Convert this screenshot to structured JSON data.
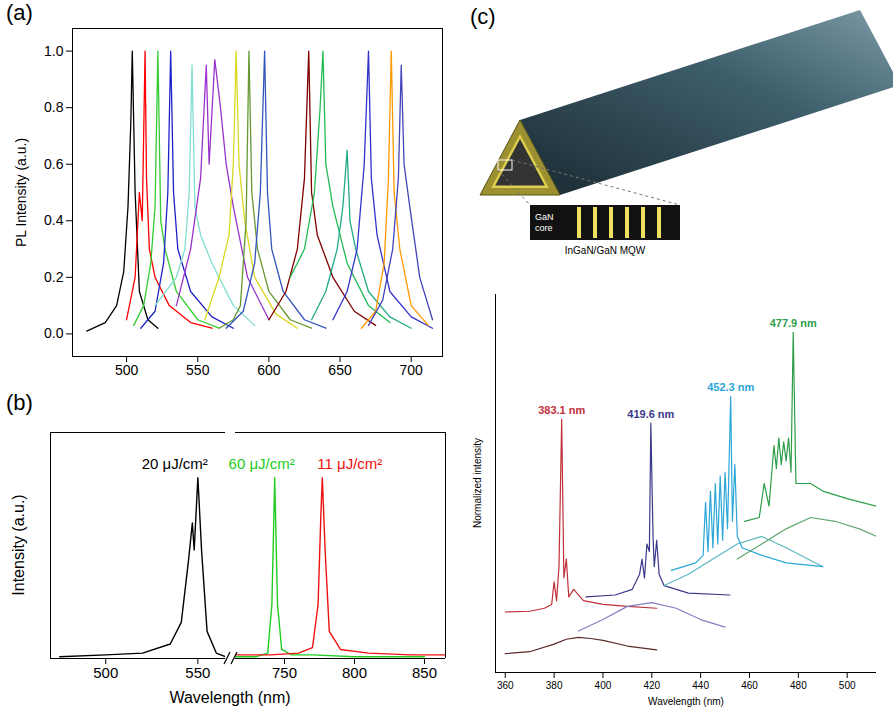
{
  "chart_data": [
    {
      "type": "line",
      "title": "(a)",
      "y_label": "PL Intensity (a.u.)",
      "xlim": [
        462,
        722
      ],
      "xticks": [
        500,
        550,
        600,
        650,
        700
      ],
      "ylim": [
        -0.08,
        1.08
      ],
      "yticks": [
        {
          "value": 0,
          "label": "0.0"
        },
        0.2,
        0.4,
        0.6,
        0.8,
        {
          "value": 1,
          "label": "1.0"
        }
      ],
      "series": [
        {
          "color": "#000000",
          "x": [
            472,
            485,
            493,
            498,
            501,
            503,
            504,
            506,
            509,
            515,
            522
          ],
          "values": [
            0.01,
            0.04,
            0.1,
            0.22,
            0.45,
            0.75,
            1.0,
            0.5,
            0.15,
            0.05,
            0.02
          ]
        },
        {
          "color": "#ff0000",
          "x": [
            500,
            506,
            509,
            511,
            513,
            514,
            516,
            520,
            530,
            545,
            560
          ],
          "values": [
            0.05,
            0.2,
            0.5,
            0.4,
            1.0,
            0.55,
            0.3,
            0.2,
            0.1,
            0.04,
            0.02
          ]
        },
        {
          "color": "#33cc33",
          "x": [
            505,
            512,
            517,
            520,
            522,
            524,
            527,
            535,
            550,
            565
          ],
          "values": [
            0.03,
            0.1,
            0.25,
            0.45,
            1.0,
            0.4,
            0.3,
            0.15,
            0.05,
            0.02
          ]
        },
        {
          "color": "#2020c8",
          "x": [
            510,
            520,
            526,
            529,
            531,
            533,
            536,
            545,
            560,
            575
          ],
          "values": [
            0.02,
            0.08,
            0.25,
            0.5,
            1.0,
            0.5,
            0.3,
            0.15,
            0.06,
            0.02
          ]
        },
        {
          "color": "#7fe0d0",
          "x": [
            520,
            535,
            541,
            544,
            546,
            548,
            552,
            560,
            575,
            590
          ],
          "values": [
            0.1,
            0.2,
            0.3,
            0.5,
            0.95,
            0.45,
            0.35,
            0.25,
            0.1,
            0.03
          ]
        },
        {
          "color": "#9933cc",
          "x": [
            535,
            545,
            552,
            556,
            558,
            562,
            566,
            570,
            575,
            585,
            600
          ],
          "values": [
            0.1,
            0.3,
            0.55,
            0.95,
            0.6,
            0.97,
            0.8,
            0.6,
            0.45,
            0.2,
            0.05
          ]
        },
        {
          "color": "#d8d820",
          "x": [
            555,
            565,
            572,
            575,
            577,
            579,
            583,
            590,
            605,
            620
          ],
          "values": [
            0.05,
            0.2,
            0.35,
            0.6,
            1.0,
            0.6,
            0.4,
            0.2,
            0.07,
            0.02
          ]
        },
        {
          "color": "#669933",
          "x": [
            565,
            575,
            580,
            584,
            586,
            588,
            592,
            600,
            615,
            630
          ],
          "values": [
            0.02,
            0.05,
            0.1,
            0.4,
            1.0,
            0.5,
            0.3,
            0.15,
            0.05,
            0.02
          ]
        },
        {
          "color": "#3355bb",
          "x": [
            570,
            582,
            590,
            594,
            597,
            599,
            602,
            610,
            625,
            640
          ],
          "values": [
            0.02,
            0.08,
            0.25,
            0.5,
            1.0,
            0.5,
            0.3,
            0.15,
            0.05,
            0.02
          ]
        },
        {
          "color": "#800000",
          "x": [
            600,
            612,
            620,
            625,
            628,
            630,
            634,
            645,
            660,
            675
          ],
          "values": [
            0.05,
            0.15,
            0.3,
            0.55,
            1.0,
            0.5,
            0.35,
            0.2,
            0.08,
            0.03
          ]
        },
        {
          "color": "#22bb55",
          "x": [
            615,
            625,
            632,
            636,
            638,
            640,
            645,
            655,
            670,
            685
          ],
          "values": [
            0.2,
            0.3,
            0.5,
            0.8,
            1.0,
            0.6,
            0.45,
            0.25,
            0.1,
            0.04
          ]
        },
        {
          "color": "#22aa88",
          "x": [
            630,
            640,
            648,
            652,
            655,
            657,
            661,
            670,
            685,
            700
          ],
          "values": [
            0.05,
            0.15,
            0.3,
            0.45,
            0.65,
            0.4,
            0.3,
            0.15,
            0.06,
            0.02
          ]
        },
        {
          "color": "#3333cc",
          "x": [
            645,
            655,
            662,
            667,
            670,
            672,
            676,
            685,
            700,
            715
          ],
          "values": [
            0.05,
            0.15,
            0.3,
            0.6,
            1.0,
            0.55,
            0.35,
            0.15,
            0.06,
            0.02
          ]
        },
        {
          "color": "#ff9900",
          "x": [
            665,
            675,
            681,
            684,
            686,
            688,
            692,
            700,
            712
          ],
          "values": [
            0.02,
            0.08,
            0.25,
            0.55,
            1.0,
            0.5,
            0.3,
            0.1,
            0.03
          ]
        },
        {
          "color": "#4444bb",
          "x": [
            670,
            680,
            687,
            691,
            693,
            695,
            699,
            706,
            715
          ],
          "values": [
            0.03,
            0.12,
            0.3,
            0.55,
            0.95,
            0.6,
            0.45,
            0.2,
            0.05
          ]
        }
      ]
    },
    {
      "type": "line",
      "title": "(b)",
      "x_label": "Wavelength (nm)",
      "y_label": "Intensity (a.u.)",
      "xlim": [
        [
          470,
          565
        ],
        [
          715,
          865
        ]
      ],
      "xticks": [
        500,
        550,
        750,
        800,
        850
      ],
      "ylim": [
        0,
        1.25
      ],
      "tick_labels": "x",
      "series": [
        {
          "name": "20 μJ/cm²",
          "color": "#000000",
          "x": [
            475,
            500,
            520,
            535,
            541,
            545,
            547,
            548,
            550,
            552,
            555,
            560,
            565
          ],
          "values": [
            0.01,
            0.02,
            0.03,
            0.08,
            0.2,
            0.55,
            0.75,
            0.6,
            1.0,
            0.6,
            0.15,
            0.03,
            0.01
          ]
        },
        {
          "name": "60 μJ/cm²",
          "color": "#22cc22",
          "x": [
            715,
            730,
            738,
            741,
            743,
            745,
            748,
            755,
            770,
            800,
            850
          ],
          "values": [
            0.01,
            0.01,
            0.03,
            0.3,
            1.0,
            0.3,
            0.05,
            0.02,
            0.02,
            0.01,
            0.01
          ]
        },
        {
          "name": "11 μJ/cm²",
          "color": "#ee1111",
          "x": [
            715,
            740,
            760,
            770,
            774,
            776,
            777,
            779,
            782,
            790,
            810,
            840,
            865
          ],
          "values": [
            0.02,
            0.02,
            0.03,
            0.06,
            0.3,
            0.8,
            1.0,
            0.6,
            0.15,
            0.05,
            0.03,
            0.02,
            0.02
          ]
        }
      ]
    },
    {
      "type": "line",
      "x_label": "Wavelength (nm)",
      "y_label": "Normalized intensity",
      "xlim": [
        356,
        512
      ],
      "xticks": [
        360,
        380,
        400,
        420,
        440,
        460,
        480,
        500
      ],
      "ylim": [
        0,
        10
      ],
      "tick_labels": "x",
      "series": [
        {
          "color": "#5a2a2a",
          "x": [
            360,
            370,
            380,
            385,
            390,
            395,
            400,
            410,
            422
          ],
          "values": [
            0.5,
            0.55,
            0.75,
            0.88,
            0.93,
            0.9,
            0.85,
            0.7,
            0.6
          ]
        },
        {
          "name": "383.1 nm",
          "color": "#c0303a",
          "x": [
            360,
            370,
            376,
            379,
            380,
            381,
            382,
            383.1,
            384,
            385,
            386,
            388,
            392,
            400,
            410,
            422
          ],
          "values": [
            1.6,
            1.62,
            1.7,
            1.8,
            2.4,
            1.9,
            2.8,
            6.7,
            2.5,
            3.0,
            2.0,
            2.2,
            1.9,
            1.8,
            1.75,
            1.7
          ]
        },
        {
          "color": "#8080c0",
          "x": [
            390,
            400,
            410,
            420,
            430,
            440,
            450
          ],
          "values": [
            1.1,
            1.4,
            1.75,
            1.85,
            1.7,
            1.4,
            1.2
          ]
        },
        {
          "name": "419.6 nm",
          "color": "#3a3a8c",
          "x": [
            393,
            405,
            412,
            415,
            416,
            417,
            418,
            419,
            419.6,
            420.5,
            421,
            422,
            423,
            425,
            435,
            452
          ],
          "values": [
            2.0,
            2.05,
            2.2,
            2.6,
            3.0,
            2.5,
            3.4,
            3.2,
            6.6,
            3.6,
            2.8,
            3.5,
            2.6,
            2.3,
            2.1,
            2.05
          ]
        },
        {
          "color": "#5ab8c0",
          "x": [
            425,
            435,
            445,
            455,
            465,
            475,
            490
          ],
          "values": [
            2.3,
            2.6,
            3.0,
            3.4,
            3.6,
            3.3,
            2.8
          ]
        },
        {
          "name": "452.3 nm",
          "color": "#2aa6d8",
          "x": [
            428,
            438,
            441,
            442,
            443,
            444,
            445,
            446,
            447,
            448,
            449,
            450,
            451,
            452.3,
            453,
            454,
            455,
            457,
            465,
            475,
            490
          ],
          "values": [
            2.7,
            2.9,
            3.1,
            4.5,
            3.2,
            4.8,
            3.3,
            5.0,
            3.4,
            5.2,
            3.5,
            5.3,
            3.8,
            7.3,
            4.0,
            5.5,
            3.6,
            3.3,
            3.1,
            2.9,
            2.8
          ]
        },
        {
          "color": "#60a870",
          "x": [
            455,
            465,
            475,
            485,
            495,
            505,
            512
          ],
          "values": [
            3.0,
            3.4,
            3.8,
            4.1,
            4.0,
            3.8,
            3.6
          ]
        },
        {
          "name": "477.9 nm",
          "color": "#2e9e4a",
          "x": [
            458,
            464,
            466,
            468,
            470,
            471,
            472,
            473,
            474,
            475,
            476,
            477,
            477.9,
            479,
            481,
            485,
            490,
            500,
            512
          ],
          "values": [
            4.0,
            4.1,
            5.0,
            4.4,
            6.0,
            5.4,
            6.2,
            5.5,
            6.1,
            5.6,
            6.2,
            5.3,
            9.0,
            5.0,
            5.0,
            5.0,
            4.8,
            4.6,
            4.4
          ]
        }
      ]
    }
  ],
  "diagram": {
    "title": "(c)",
    "core_label": "GaN core",
    "layer_label": "InGaN/GaN MQW"
  }
}
